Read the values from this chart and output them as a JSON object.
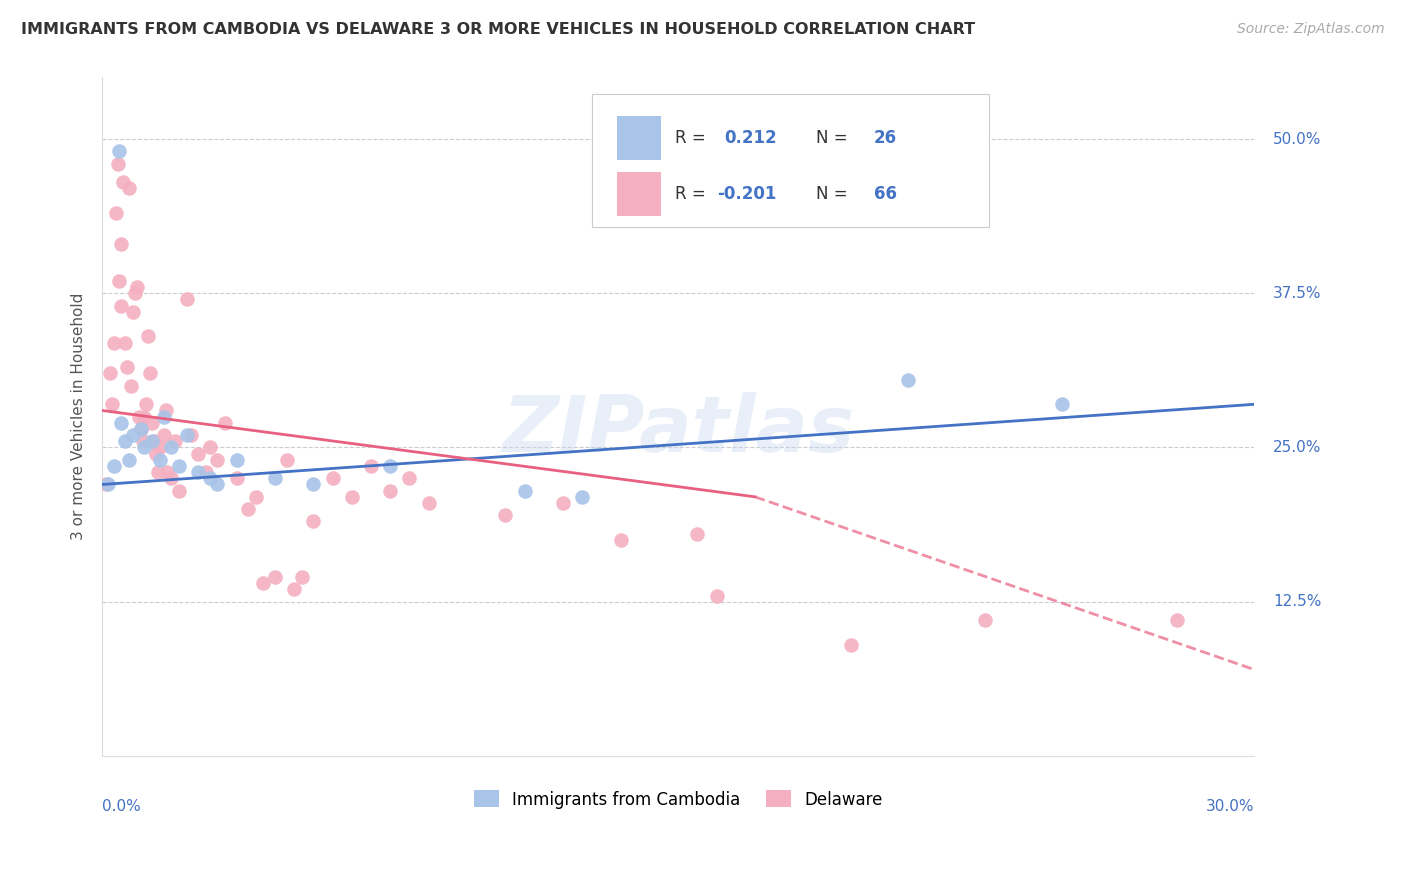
{
  "title": "IMMIGRANTS FROM CAMBODIA VS DELAWARE 3 OR MORE VEHICLES IN HOUSEHOLD CORRELATION CHART",
  "source": "Source: ZipAtlas.com",
  "ylabel": "3 or more Vehicles in Household",
  "xlim": [
    0.0,
    30.0
  ],
  "ylim": [
    0.0,
    55.0
  ],
  "xticks": [
    0.0,
    6.0,
    12.0,
    18.0,
    24.0,
    30.0
  ],
  "xticklabels_left": "0.0%",
  "xticklabels_right": "30.0%",
  "yticks": [
    12.5,
    25.0,
    37.5,
    50.0
  ],
  "yticklabels": [
    "12.5%",
    "25.0%",
    "37.5%",
    "50.0%"
  ],
  "blue_color": "#a8c4e8",
  "pink_color": "#f4b0c0",
  "blue_line_color": "#4472c4",
  "pink_line_color": "#e86080",
  "watermark": "ZIPatlas",
  "scatter_blue": [
    [
      0.15,
      22.0
    ],
    [
      0.3,
      23.5
    ],
    [
      0.45,
      49.0
    ],
    [
      0.5,
      27.0
    ],
    [
      0.6,
      25.5
    ],
    [
      0.7,
      24.0
    ],
    [
      0.8,
      26.0
    ],
    [
      1.0,
      26.5
    ],
    [
      1.1,
      25.0
    ],
    [
      1.3,
      25.5
    ],
    [
      1.5,
      24.0
    ],
    [
      1.6,
      27.5
    ],
    [
      1.8,
      25.0
    ],
    [
      2.0,
      23.5
    ],
    [
      2.2,
      26.0
    ],
    [
      2.5,
      23.0
    ],
    [
      2.8,
      22.5
    ],
    [
      3.0,
      22.0
    ],
    [
      3.5,
      24.0
    ],
    [
      4.5,
      22.5
    ],
    [
      5.5,
      22.0
    ],
    [
      7.5,
      23.5
    ],
    [
      11.0,
      21.5
    ],
    [
      12.5,
      21.0
    ],
    [
      21.0,
      30.5
    ],
    [
      25.0,
      28.5
    ]
  ],
  "scatter_pink": [
    [
      0.1,
      22.0
    ],
    [
      0.2,
      31.0
    ],
    [
      0.25,
      28.5
    ],
    [
      0.3,
      33.5
    ],
    [
      0.35,
      44.0
    ],
    [
      0.4,
      48.0
    ],
    [
      0.45,
      38.5
    ],
    [
      0.5,
      36.5
    ],
    [
      0.5,
      41.5
    ],
    [
      0.55,
      46.5
    ],
    [
      0.6,
      33.5
    ],
    [
      0.65,
      31.5
    ],
    [
      0.7,
      46.0
    ],
    [
      0.75,
      30.0
    ],
    [
      0.8,
      36.0
    ],
    [
      0.85,
      37.5
    ],
    [
      0.9,
      38.0
    ],
    [
      0.95,
      27.5
    ],
    [
      1.0,
      26.5
    ],
    [
      1.05,
      25.5
    ],
    [
      1.1,
      27.5
    ],
    [
      1.15,
      28.5
    ],
    [
      1.2,
      34.0
    ],
    [
      1.25,
      31.0
    ],
    [
      1.3,
      27.0
    ],
    [
      1.35,
      25.5
    ],
    [
      1.4,
      24.5
    ],
    [
      1.45,
      23.0
    ],
    [
      1.5,
      25.0
    ],
    [
      1.6,
      26.0
    ],
    [
      1.65,
      28.0
    ],
    [
      1.7,
      23.0
    ],
    [
      1.8,
      22.5
    ],
    [
      1.9,
      25.5
    ],
    [
      2.0,
      21.5
    ],
    [
      2.2,
      37.0
    ],
    [
      2.3,
      26.0
    ],
    [
      2.5,
      24.5
    ],
    [
      2.7,
      23.0
    ],
    [
      2.8,
      25.0
    ],
    [
      3.0,
      24.0
    ],
    [
      3.2,
      27.0
    ],
    [
      3.5,
      22.5
    ],
    [
      3.8,
      20.0
    ],
    [
      4.0,
      21.0
    ],
    [
      4.2,
      14.0
    ],
    [
      4.5,
      14.5
    ],
    [
      4.8,
      24.0
    ],
    [
      5.0,
      13.5
    ],
    [
      5.2,
      14.5
    ],
    [
      5.5,
      19.0
    ],
    [
      6.0,
      22.5
    ],
    [
      6.5,
      21.0
    ],
    [
      7.0,
      23.5
    ],
    [
      7.5,
      21.5
    ],
    [
      8.0,
      22.5
    ],
    [
      8.5,
      20.5
    ],
    [
      10.5,
      19.5
    ],
    [
      12.0,
      20.5
    ],
    [
      13.5,
      17.5
    ],
    [
      15.5,
      18.0
    ],
    [
      16.0,
      13.0
    ],
    [
      19.5,
      9.0
    ],
    [
      23.0,
      11.0
    ],
    [
      28.0,
      11.0
    ]
  ],
  "blue_line": [
    [
      0.0,
      22.0
    ],
    [
      30.0,
      28.5
    ]
  ],
  "pink_line_solid": [
    [
      0.0,
      28.0
    ],
    [
      17.0,
      21.0
    ]
  ],
  "pink_line_dashed": [
    [
      17.0,
      21.0
    ],
    [
      30.0,
      7.0
    ]
  ],
  "legend_blue_label": "Immigrants from Cambodia",
  "legend_pink_label": "Delaware",
  "background_color": "#ffffff",
  "grid_color": "#cccccc"
}
